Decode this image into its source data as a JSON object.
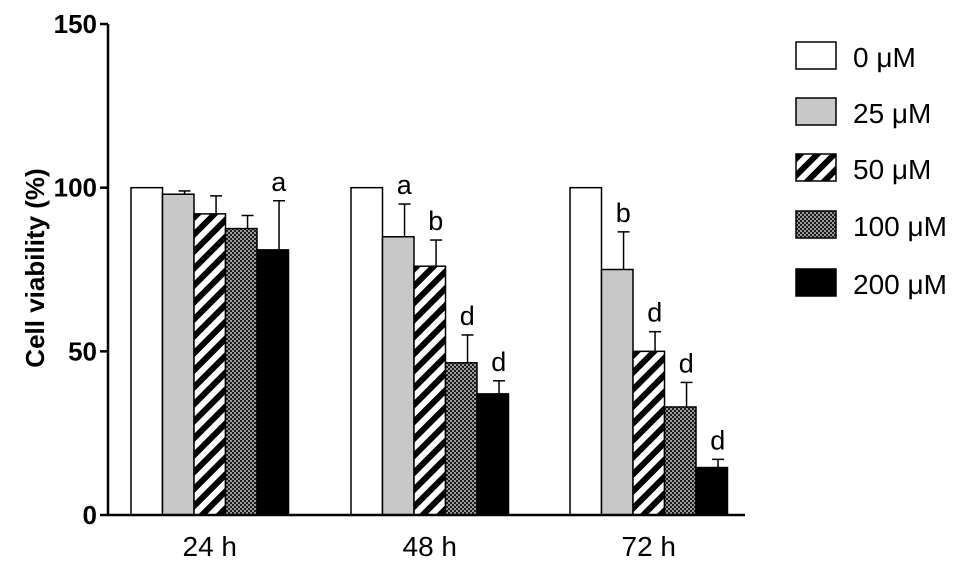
{
  "chart_data": {
    "type": "bar",
    "title": "",
    "xlabel": "",
    "ylabel": "Cell viability (%)",
    "ylim": [
      0,
      150
    ],
    "yticks": [
      0,
      50,
      100,
      150
    ],
    "legend_position": "right",
    "categories": [
      "24 h",
      "48 h",
      "72 h"
    ],
    "series": [
      {
        "name": "0 μM",
        "pattern": "white",
        "color": "#ffffff",
        "values": [
          100,
          100,
          100
        ],
        "errors": [
          0,
          0,
          0
        ],
        "labels": [
          "",
          "",
          ""
        ]
      },
      {
        "name": "25 μM",
        "pattern": "gray",
        "color": "#c8c8c8",
        "values": [
          98,
          85,
          75
        ],
        "errors": [
          1,
          10,
          11.5
        ],
        "labels": [
          "",
          "a",
          "b"
        ]
      },
      {
        "name": "50 μM",
        "pattern": "diagonal",
        "color": "#000000",
        "values": [
          92,
          76,
          50
        ],
        "errors": [
          5.5,
          8,
          6
        ],
        "labels": [
          "",
          "b",
          "d"
        ]
      },
      {
        "name": "100 μM",
        "pattern": "checker",
        "color": "#444444",
        "values": [
          87.5,
          46.5,
          33
        ],
        "errors": [
          4,
          8.5,
          7.5
        ],
        "labels": [
          "",
          "d",
          "d"
        ]
      },
      {
        "name": "200 μM",
        "pattern": "black",
        "color": "#000000",
        "values": [
          81,
          37,
          14.5
        ],
        "errors": [
          15,
          4,
          2.5
        ],
        "labels": [
          "a",
          "d",
          "d"
        ]
      }
    ]
  }
}
